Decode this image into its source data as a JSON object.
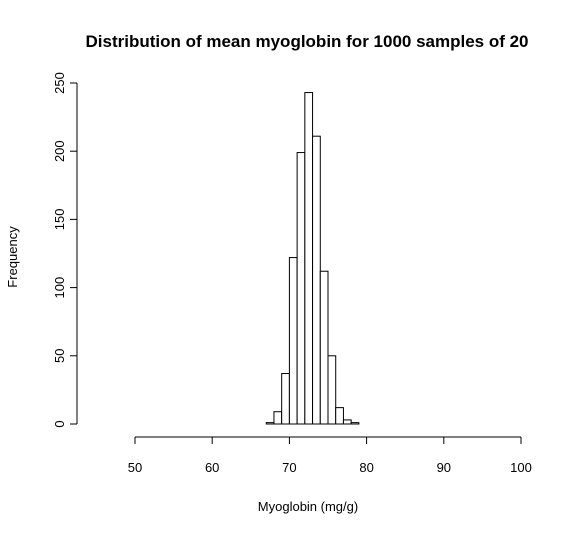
{
  "chart_data": {
    "type": "bar",
    "title": "Distribution of mean myoglobin for 1000 samples of 20",
    "xlabel": "Myoglobin (mg/g)",
    "ylabel": "Frequency",
    "xlim": [
      50,
      100
    ],
    "ylim": [
      0,
      250
    ],
    "xticks": [
      "50",
      "60",
      "70",
      "80",
      "90",
      "100"
    ],
    "yticks": [
      "0",
      "50",
      "100",
      "150",
      "200",
      "250"
    ],
    "bin_width": 1,
    "bins": [
      {
        "start": 67,
        "end": 68,
        "count": 1
      },
      {
        "start": 68,
        "end": 69,
        "count": 9
      },
      {
        "start": 69,
        "end": 70,
        "count": 37
      },
      {
        "start": 70,
        "end": 71,
        "count": 122
      },
      {
        "start": 71,
        "end": 72,
        "count": 199
      },
      {
        "start": 72,
        "end": 73,
        "count": 243
      },
      {
        "start": 73,
        "end": 74,
        "count": 211
      },
      {
        "start": 74,
        "end": 75,
        "count": 112
      },
      {
        "start": 75,
        "end": 76,
        "count": 50
      },
      {
        "start": 76,
        "end": 77,
        "count": 12
      },
      {
        "start": 77,
        "end": 78,
        "count": 3
      },
      {
        "start": 78,
        "end": 79,
        "count": 1
      }
    ],
    "grid": false
  }
}
